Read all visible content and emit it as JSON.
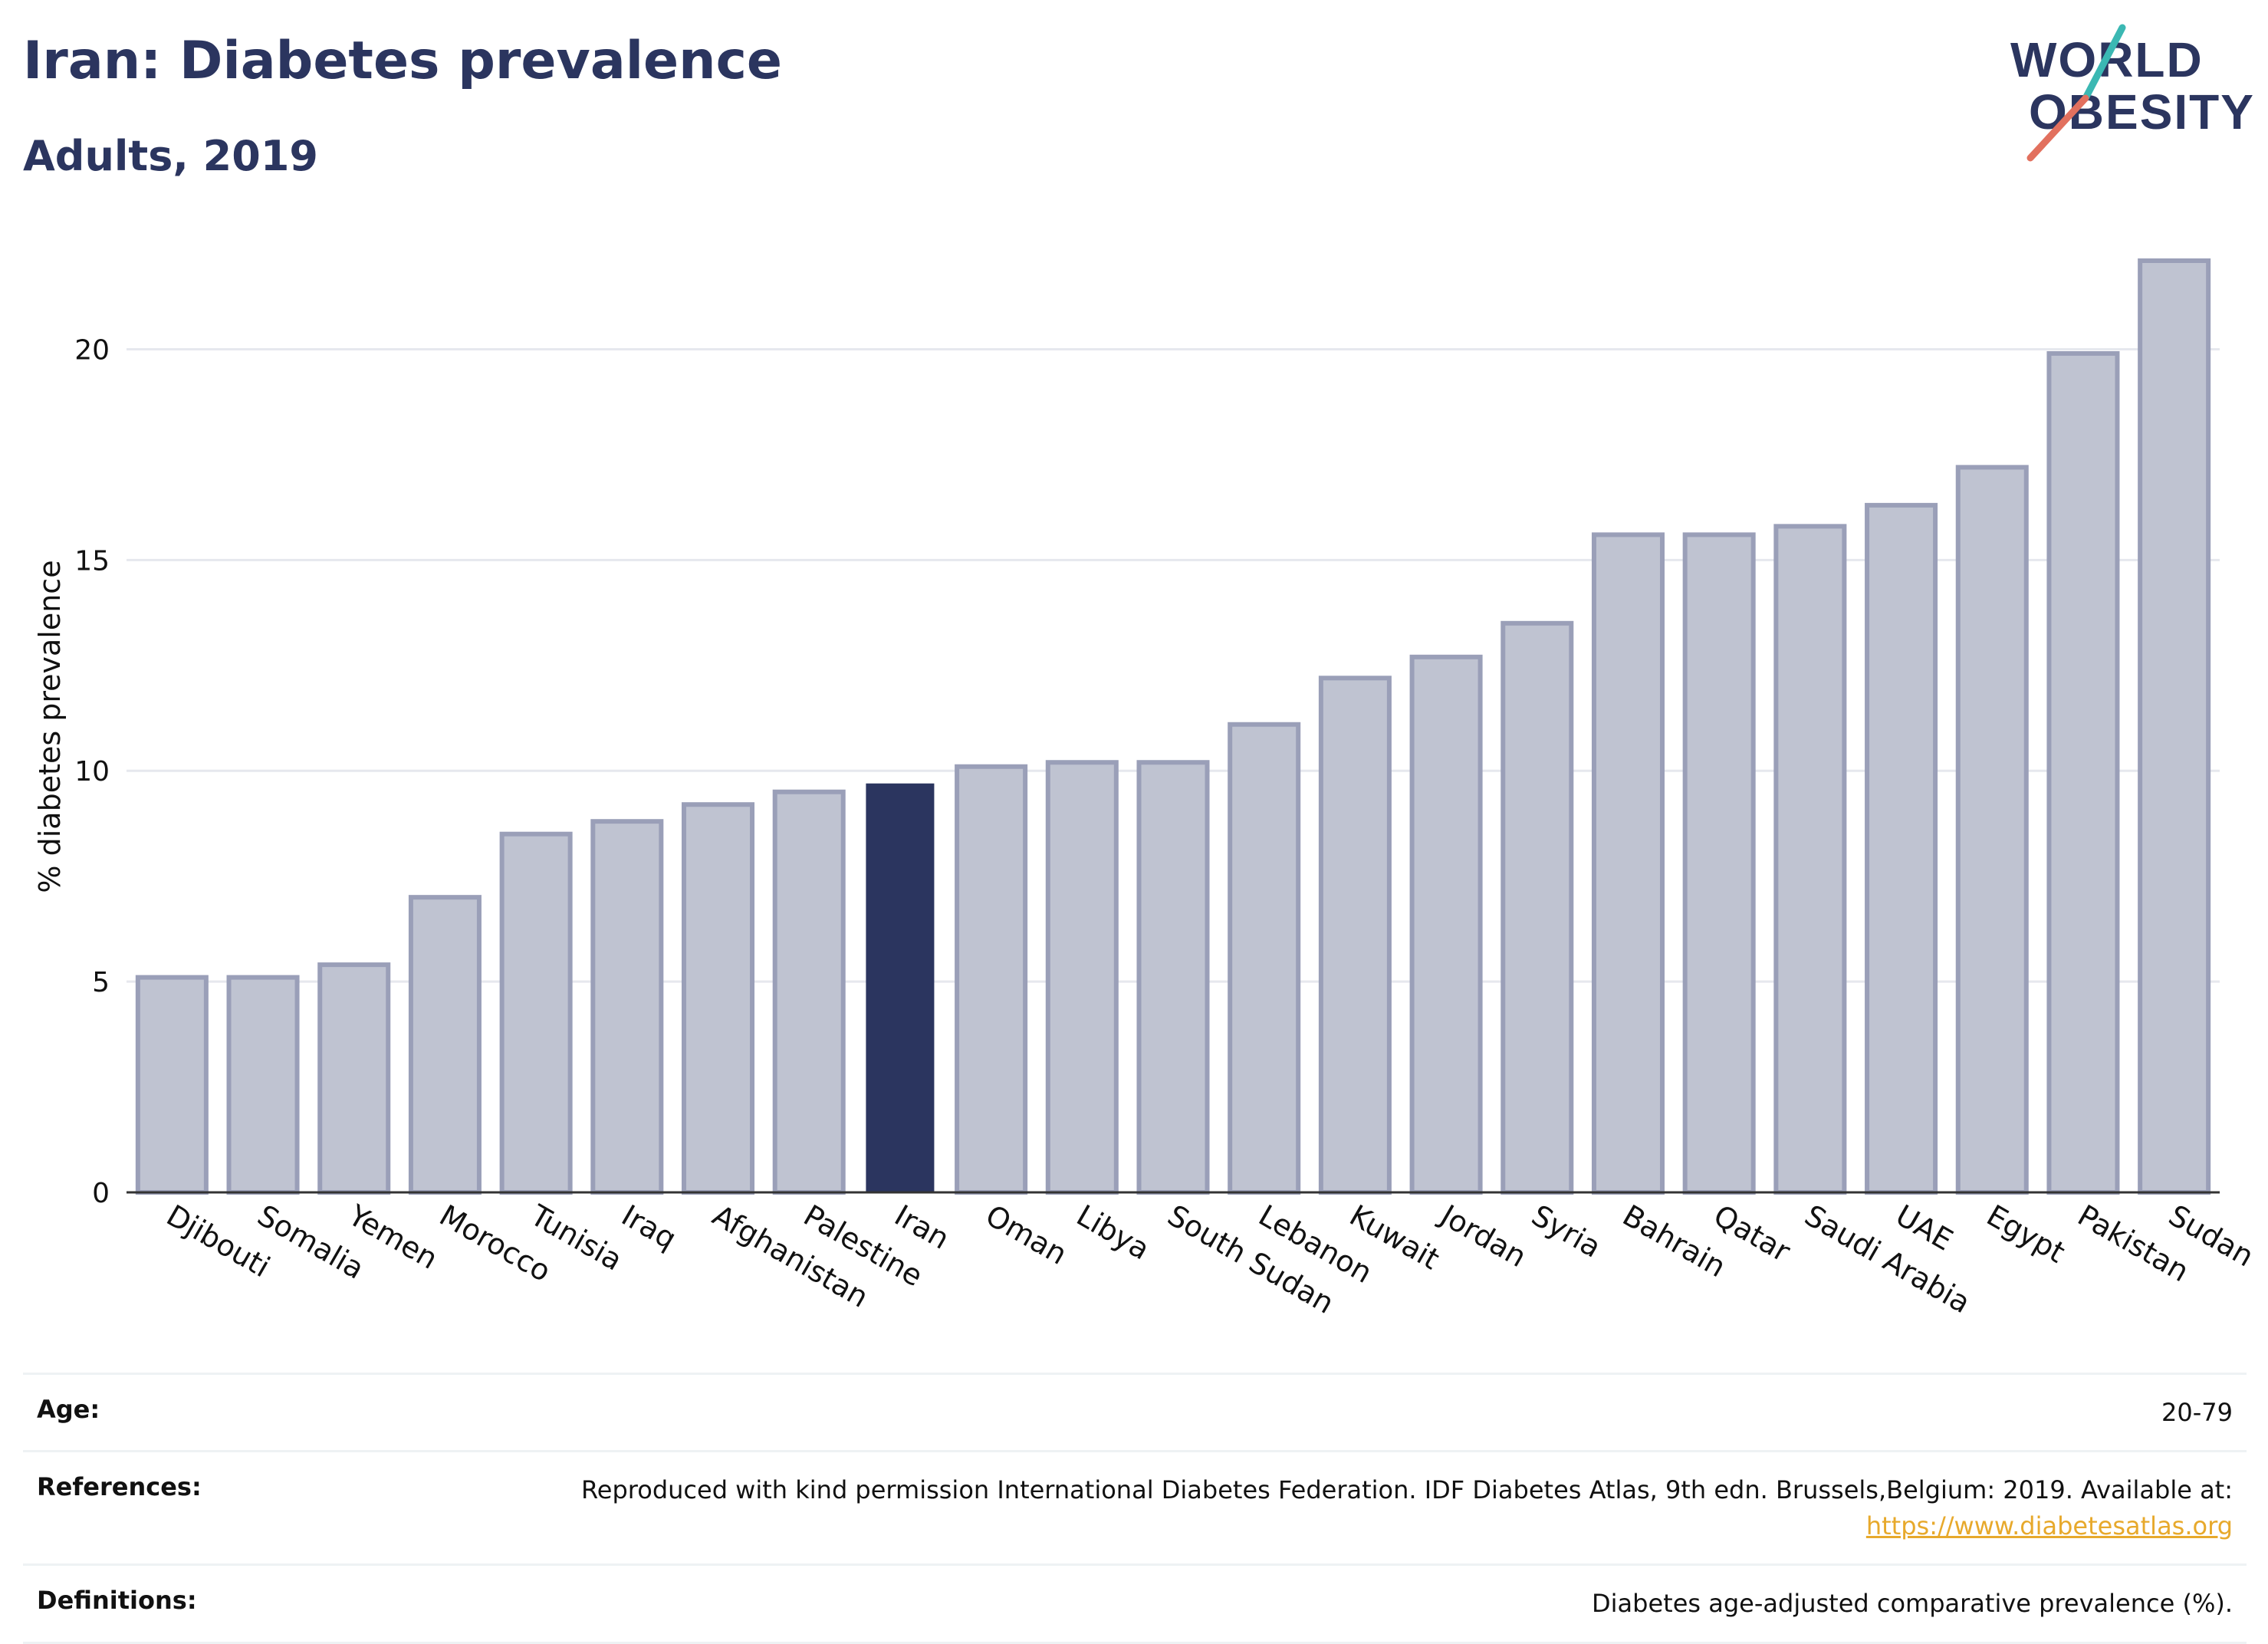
{
  "header": {
    "title": "Iran: Diabetes prevalence",
    "subtitle": "Adults, 2019"
  },
  "logo": {
    "line1": "WORLD",
    "line2": "OBESITY"
  },
  "colors": {
    "highlight": "#2b355f",
    "bar": "#bfc3d1",
    "bar_stroke": "#9a9fb8",
    "accent_teal": "#3bb8b3",
    "accent_coral": "#e2705e"
  },
  "chart_data": {
    "type": "bar",
    "ylabel": "% diabetes prevalence",
    "xlabel": "",
    "ylim": [
      0,
      22.1
    ],
    "yticks": [
      0,
      5,
      10,
      15,
      20
    ],
    "grid": true,
    "highlight": "Iran",
    "categories": [
      "Djibouti",
      "Somalia",
      "Yemen",
      "Morocco",
      "Tunisia",
      "Iraq",
      "Afghanistan",
      "Palestine",
      "Iran",
      "Oman",
      "Libya",
      "South Sudan",
      "Lebanon",
      "Kuwait",
      "Jordan",
      "Syria",
      "Bahrain",
      "Qatar",
      "Saudi Arabia",
      "UAE",
      "Egypt",
      "Pakistan",
      "Sudan"
    ],
    "values": [
      5.1,
      5.1,
      5.4,
      7.0,
      8.5,
      8.8,
      9.2,
      9.5,
      9.7,
      10.1,
      10.2,
      10.2,
      11.1,
      12.2,
      12.7,
      13.5,
      15.6,
      15.6,
      15.8,
      16.3,
      17.2,
      19.9,
      22.1
    ]
  },
  "info": {
    "age_label": "Age:",
    "age_value": "20-79",
    "references_label": "References:",
    "references_value": "Reproduced with kind permission International Diabetes Federation. IDF Diabetes Atlas, 9th edn. Brussels,Belgium: 2019. Available at:",
    "references_link": "https://www.diabetesatlas.org",
    "definitions_label": "Definitions:",
    "definitions_value": "Diabetes age-adjusted comparative prevalence (%)."
  }
}
